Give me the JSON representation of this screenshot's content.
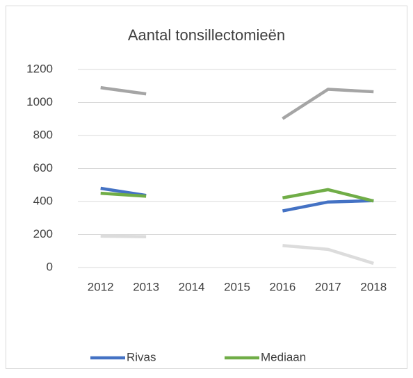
{
  "chart_data": {
    "type": "line",
    "title": "Aantal tonsillectomieën",
    "categories": [
      "2012",
      "2013",
      "2014",
      "2015",
      "2016",
      "2017",
      "2018"
    ],
    "series": [
      {
        "color": "#a5a5a5",
        "values": [
          1090,
          1052,
          null,
          null,
          902,
          1080,
          1065
        ]
      },
      {
        "name": "Rivas",
        "color": "#4472c4",
        "values": [
          480,
          437,
          null,
          null,
          343,
          397,
          405
        ]
      },
      {
        "name": "Mediaan",
        "color": "#70ad47",
        "values": [
          450,
          432,
          null,
          null,
          422,
          472,
          403
        ]
      },
      {
        "color": "#dcdcdc",
        "values": [
          190,
          187,
          null,
          null,
          133,
          110,
          25
        ]
      }
    ],
    "ylim": [
      0,
      1200
    ],
    "yticks": [
      0,
      200,
      400,
      600,
      800,
      1000,
      1200
    ],
    "grid": true,
    "legend": "bottom"
  }
}
